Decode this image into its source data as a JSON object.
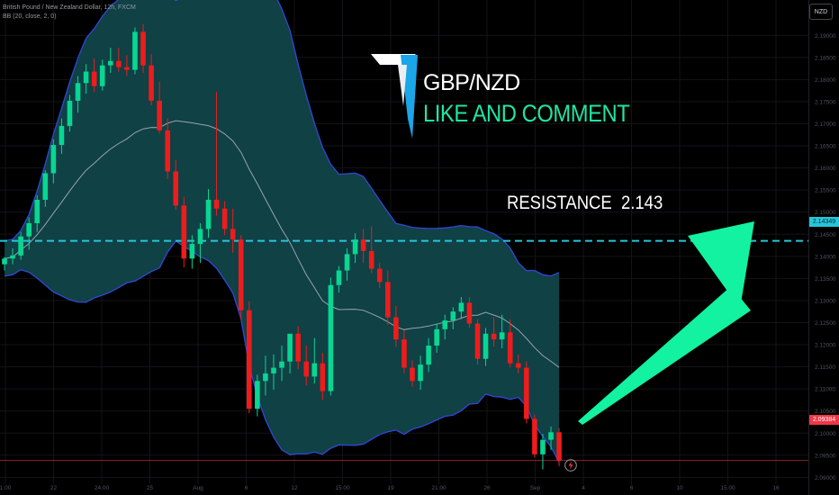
{
  "header": {
    "symbol_line": "British Pound / New Zealand Dollar, 12h, FXCM",
    "indicator_line": "BB (20, close, 2, 0)"
  },
  "currency_button": "NZD",
  "overlay": {
    "pair": "GBP/NZD",
    "cta": "LIKE AND COMMENT",
    "resistance_text": "RESISTANCE  2.143"
  },
  "price_tags": {
    "resistance": "2.14349",
    "current": "2.09384"
  },
  "colors": {
    "bull": "#08d693",
    "bear": "#ee1c1c",
    "band_fill": "#0f4145",
    "band_line": "#3347d6",
    "basis": "#b2b5be",
    "resistance_line": "#26c6da",
    "current_line": "#f23645",
    "arrow": "#12f2a0"
  },
  "chart_data": {
    "type": "candlestick",
    "title": "British Pound / New Zealand Dollar, 12h, FXCM",
    "ylim": [
      2.086,
      2.198
    ],
    "resistance": 2.14349,
    "current_price": 2.09384,
    "x_tick_labels": [
      "1:00",
      "22",
      "24:00",
      "25",
      "Aug",
      "6",
      "12",
      "15:00",
      "19",
      "21:00",
      "26",
      "Sep",
      "4",
      "6",
      "10",
      "15:00",
      "16"
    ],
    "y_tick_labels": [
      "2.19000",
      "2.18500",
      "2.18000",
      "2.17500",
      "2.17000",
      "2.16500",
      "2.16000",
      "2.15500",
      "2.15000",
      "2.14500",
      "2.14000",
      "2.13500",
      "2.13000",
      "2.12500",
      "2.12000",
      "2.11500",
      "2.11000",
      "2.10500",
      "2.10000",
      "2.09500",
      "2.09000",
      "2.08500"
    ],
    "candles": [
      {
        "o": 2.1382,
        "h": 2.1398,
        "l": 2.1368,
        "c": 2.1395
      },
      {
        "o": 2.1395,
        "h": 2.1418,
        "l": 2.1382,
        "c": 2.1402
      },
      {
        "o": 2.1402,
        "h": 2.1455,
        "l": 2.1392,
        "c": 2.1445
      },
      {
        "o": 2.1445,
        "h": 2.1488,
        "l": 2.1415,
        "c": 2.1475
      },
      {
        "o": 2.1475,
        "h": 2.1538,
        "l": 2.1455,
        "c": 2.1528
      },
      {
        "o": 2.1528,
        "h": 2.1595,
        "l": 2.1512,
        "c": 2.1588
      },
      {
        "o": 2.1588,
        "h": 2.1665,
        "l": 2.1565,
        "c": 2.1652
      },
      {
        "o": 2.1652,
        "h": 2.1712,
        "l": 2.1632,
        "c": 2.1695
      },
      {
        "o": 2.1695,
        "h": 2.1765,
        "l": 2.1682,
        "c": 2.1752
      },
      {
        "o": 2.1752,
        "h": 2.1808,
        "l": 2.1725,
        "c": 2.1792
      },
      {
        "o": 2.1792,
        "h": 2.1835,
        "l": 2.1768,
        "c": 2.1818
      },
      {
        "o": 2.1818,
        "h": 2.1848,
        "l": 2.1772,
        "c": 2.1785
      },
      {
        "o": 2.1785,
        "h": 2.1845,
        "l": 2.1775,
        "c": 2.1832
      },
      {
        "o": 2.1832,
        "h": 2.1872,
        "l": 2.1815,
        "c": 2.1842
      },
      {
        "o": 2.1842,
        "h": 2.1872,
        "l": 2.1818,
        "c": 2.1828
      },
      {
        "o": 2.1828,
        "h": 2.1855,
        "l": 2.1808,
        "c": 2.1822
      },
      {
        "o": 2.1822,
        "h": 2.1918,
        "l": 2.1812,
        "c": 2.1908
      },
      {
        "o": 2.1908,
        "h": 2.1925,
        "l": 2.1815,
        "c": 2.1832
      },
      {
        "o": 2.1832,
        "h": 2.1858,
        "l": 2.1742,
        "c": 2.1752
      },
      {
        "o": 2.1752,
        "h": 2.1795,
        "l": 2.1678,
        "c": 2.1685
      },
      {
        "o": 2.1685,
        "h": 2.1712,
        "l": 2.1575,
        "c": 2.1592
      },
      {
        "o": 2.1592,
        "h": 2.1618,
        "l": 2.1505,
        "c": 2.1515
      },
      {
        "o": 2.1515,
        "h": 2.1535,
        "l": 2.1375,
        "c": 2.1395
      },
      {
        "o": 2.1395,
        "h": 2.1448,
        "l": 2.1372,
        "c": 2.1428
      },
      {
        "o": 2.1428,
        "h": 2.1475,
        "l": 2.1385,
        "c": 2.1462
      },
      {
        "o": 2.1462,
        "h": 2.1552,
        "l": 2.1442,
        "c": 2.1528
      },
      {
        "o": 2.1528,
        "h": 2.1772,
        "l": 2.1492,
        "c": 2.1508
      },
      {
        "o": 2.1508,
        "h": 2.1525,
        "l": 2.1448,
        "c": 2.1462
      },
      {
        "o": 2.1462,
        "h": 2.1508,
        "l": 2.1408,
        "c": 2.1438
      },
      {
        "o": 2.1438,
        "h": 2.1448,
        "l": 2.1258,
        "c": 2.1278
      },
      {
        "o": 2.1278,
        "h": 2.1298,
        "l": 2.1045,
        "c": 2.1055
      },
      {
        "o": 2.1055,
        "h": 2.1132,
        "l": 2.1038,
        "c": 2.1118
      },
      {
        "o": 2.1118,
        "h": 2.1175,
        "l": 2.1085,
        "c": 2.1135
      },
      {
        "o": 2.1135,
        "h": 2.1178,
        "l": 2.1098,
        "c": 2.1148
      },
      {
        "o": 2.1148,
        "h": 2.1198,
        "l": 2.1118,
        "c": 2.1162
      },
      {
        "o": 2.1162,
        "h": 2.1218,
        "l": 2.1135,
        "c": 2.1225
      },
      {
        "o": 2.1225,
        "h": 2.1242,
        "l": 2.1145,
        "c": 2.1162
      },
      {
        "o": 2.1162,
        "h": 2.1198,
        "l": 2.1108,
        "c": 2.1128
      },
      {
        "o": 2.1128,
        "h": 2.1215,
        "l": 2.1112,
        "c": 2.1158
      },
      {
        "o": 2.1158,
        "h": 2.1182,
        "l": 2.1075,
        "c": 2.1095
      },
      {
        "o": 2.1095,
        "h": 2.1352,
        "l": 2.1085,
        "c": 2.1335
      },
      {
        "o": 2.1335,
        "h": 2.1378,
        "l": 2.1318,
        "c": 2.1368
      },
      {
        "o": 2.1368,
        "h": 2.1418,
        "l": 2.1345,
        "c": 2.1405
      },
      {
        "o": 2.1405,
        "h": 2.1452,
        "l": 2.1385,
        "c": 2.1438
      },
      {
        "o": 2.1438,
        "h": 2.1462,
        "l": 2.1385,
        "c": 2.1412
      },
      {
        "o": 2.1412,
        "h": 2.1468,
        "l": 2.1362,
        "c": 2.1372
      },
      {
        "o": 2.1372,
        "h": 2.1385,
        "l": 2.1328,
        "c": 2.1342
      },
      {
        "o": 2.1342,
        "h": 2.1368,
        "l": 2.1245,
        "c": 2.1262
      },
      {
        "o": 2.1262,
        "h": 2.1288,
        "l": 2.1195,
        "c": 2.1212
      },
      {
        "o": 2.1212,
        "h": 2.1232,
        "l": 2.1135,
        "c": 2.1148
      },
      {
        "o": 2.1148,
        "h": 2.1165,
        "l": 2.1105,
        "c": 2.1118
      },
      {
        "o": 2.1118,
        "h": 2.1175,
        "l": 2.1098,
        "c": 2.1155
      },
      {
        "o": 2.1155,
        "h": 2.1215,
        "l": 2.1138,
        "c": 2.1198
      },
      {
        "o": 2.1198,
        "h": 2.1248,
        "l": 2.1182,
        "c": 2.1235
      },
      {
        "o": 2.1235,
        "h": 2.1268,
        "l": 2.1212,
        "c": 2.1255
      },
      {
        "o": 2.1255,
        "h": 2.1285,
        "l": 2.1235,
        "c": 2.1275
      },
      {
        "o": 2.1275,
        "h": 2.1308,
        "l": 2.1258,
        "c": 2.1295
      },
      {
        "o": 2.1295,
        "h": 2.1308,
        "l": 2.1238,
        "c": 2.1248
      },
      {
        "o": 2.1248,
        "h": 2.1258,
        "l": 2.1155,
        "c": 2.1168
      },
      {
        "o": 2.1168,
        "h": 2.1238,
        "l": 2.1152,
        "c": 2.1225
      },
      {
        "o": 2.1225,
        "h": 2.1262,
        "l": 2.1195,
        "c": 2.1212
      },
      {
        "o": 2.1212,
        "h": 2.1268,
        "l": 2.1192,
        "c": 2.1228
      },
      {
        "o": 2.1228,
        "h": 2.1258,
        "l": 2.1148,
        "c": 2.1158
      },
      {
        "o": 2.1158,
        "h": 2.1178,
        "l": 2.1135,
        "c": 2.1148
      },
      {
        "o": 2.1148,
        "h": 2.1162,
        "l": 2.1022,
        "c": 2.1032
      },
      {
        "o": 2.1032,
        "h": 2.1042,
        "l": 2.0945,
        "c": 2.0952
      },
      {
        "o": 2.0952,
        "h": 2.0998,
        "l": 2.0918,
        "c": 2.0985
      },
      {
        "o": 2.0985,
        "h": 2.1015,
        "l": 2.0962,
        "c": 2.1002
      },
      {
        "o": 2.1002,
        "h": 2.1012,
        "l": 2.0925,
        "c": 2.0938
      }
    ]
  }
}
